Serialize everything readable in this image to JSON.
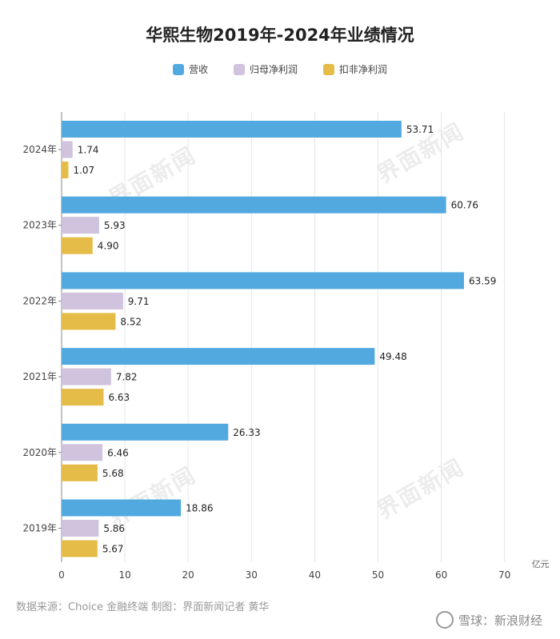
{
  "title": "华熙生物2019年-2024年业绩情况",
  "legend": [
    {
      "name": "营收",
      "color": "#52a9e0"
    },
    {
      "name": "归母净利润",
      "color": "#cfc3de"
    },
    {
      "name": "扣非净利润",
      "color": "#e5bc47"
    }
  ],
  "unit_label": "亿元",
  "source_note": "数据来源：Choice 金融终端 制图：界面新闻记者 黄华",
  "watermark_text": "界面新闻",
  "footer_brand": "雪球：新浪财经",
  "chart_data": {
    "type": "bar",
    "orientation": "horizontal",
    "title": "华熙生物2019年-2024年业绩情况",
    "categories": [
      "2024年",
      "2023年",
      "2022年",
      "2021年",
      "2020年",
      "2019年"
    ],
    "series": [
      {
        "name": "营收",
        "color": "#52a9e0",
        "values": [
          53.71,
          60.76,
          63.59,
          49.48,
          26.33,
          18.86
        ]
      },
      {
        "name": "归母净利润",
        "color": "#cfc3de",
        "values": [
          1.74,
          5.93,
          9.71,
          7.82,
          6.46,
          5.86
        ]
      },
      {
        "name": "扣非净利润",
        "color": "#e5bc47",
        "values": [
          1.07,
          4.9,
          8.52,
          6.63,
          5.68,
          5.67
        ]
      }
    ],
    "value_labels": [
      [
        "53.71",
        "60.76",
        "63.59",
        "49.48",
        "26.33",
        "18.86"
      ],
      [
        "1.74",
        "5.93",
        "9.71",
        "7.82",
        "6.46",
        "5.86"
      ],
      [
        "1.07",
        "4.90",
        "8.52",
        "6.63",
        "5.68",
        "5.67"
      ]
    ],
    "xlim": [
      0,
      70
    ],
    "xticks": [
      0,
      10,
      20,
      30,
      40,
      50,
      60,
      70
    ],
    "xlabel": "亿元",
    "ylabel": "",
    "grid": "vertical",
    "legend_position": "top-center"
  }
}
